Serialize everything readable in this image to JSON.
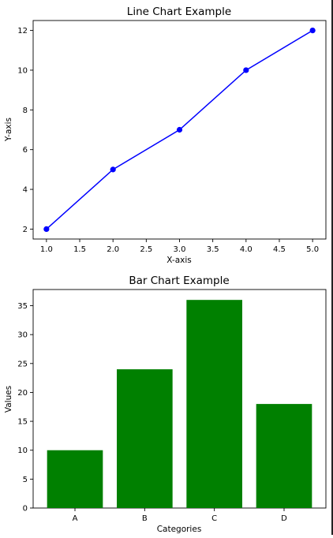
{
  "colors": {
    "line": "#0000ff",
    "bar": "#008000",
    "axis": "#000000",
    "background": "#ffffff"
  },
  "chart_data": [
    {
      "type": "line",
      "title": "Line Chart Example",
      "xlabel": "X-axis",
      "ylabel": "Y-axis",
      "x": [
        1,
        2,
        3,
        4,
        5
      ],
      "values": [
        2,
        5,
        7,
        10,
        12
      ],
      "marker": "circle",
      "xlim": [
        0.8,
        5.2
      ],
      "ylim": [
        1.5,
        12.5
      ],
      "xticks": [
        1.0,
        1.5,
        2.0,
        2.5,
        3.0,
        3.5,
        4.0,
        4.5,
        5.0
      ],
      "xtick_labels": [
        "1.0",
        "1.5",
        "2.0",
        "2.5",
        "3.0",
        "3.5",
        "4.0",
        "4.5",
        "5.0"
      ],
      "yticks": [
        2,
        4,
        6,
        8,
        10,
        12
      ],
      "ytick_labels": [
        "2",
        "4",
        "6",
        "8",
        "10",
        "12"
      ],
      "grid": false
    },
    {
      "type": "bar",
      "title": "Bar Chart Example",
      "xlabel": "Categories",
      "ylabel": "Values",
      "categories": [
        "A",
        "B",
        "C",
        "D"
      ],
      "values": [
        10,
        24,
        36,
        18
      ],
      "ylim": [
        0,
        37.8
      ],
      "yticks": [
        0,
        5,
        10,
        15,
        20,
        25,
        30,
        35
      ],
      "ytick_labels": [
        "0",
        "5",
        "10",
        "15",
        "20",
        "25",
        "30",
        "35"
      ],
      "grid": false
    }
  ]
}
